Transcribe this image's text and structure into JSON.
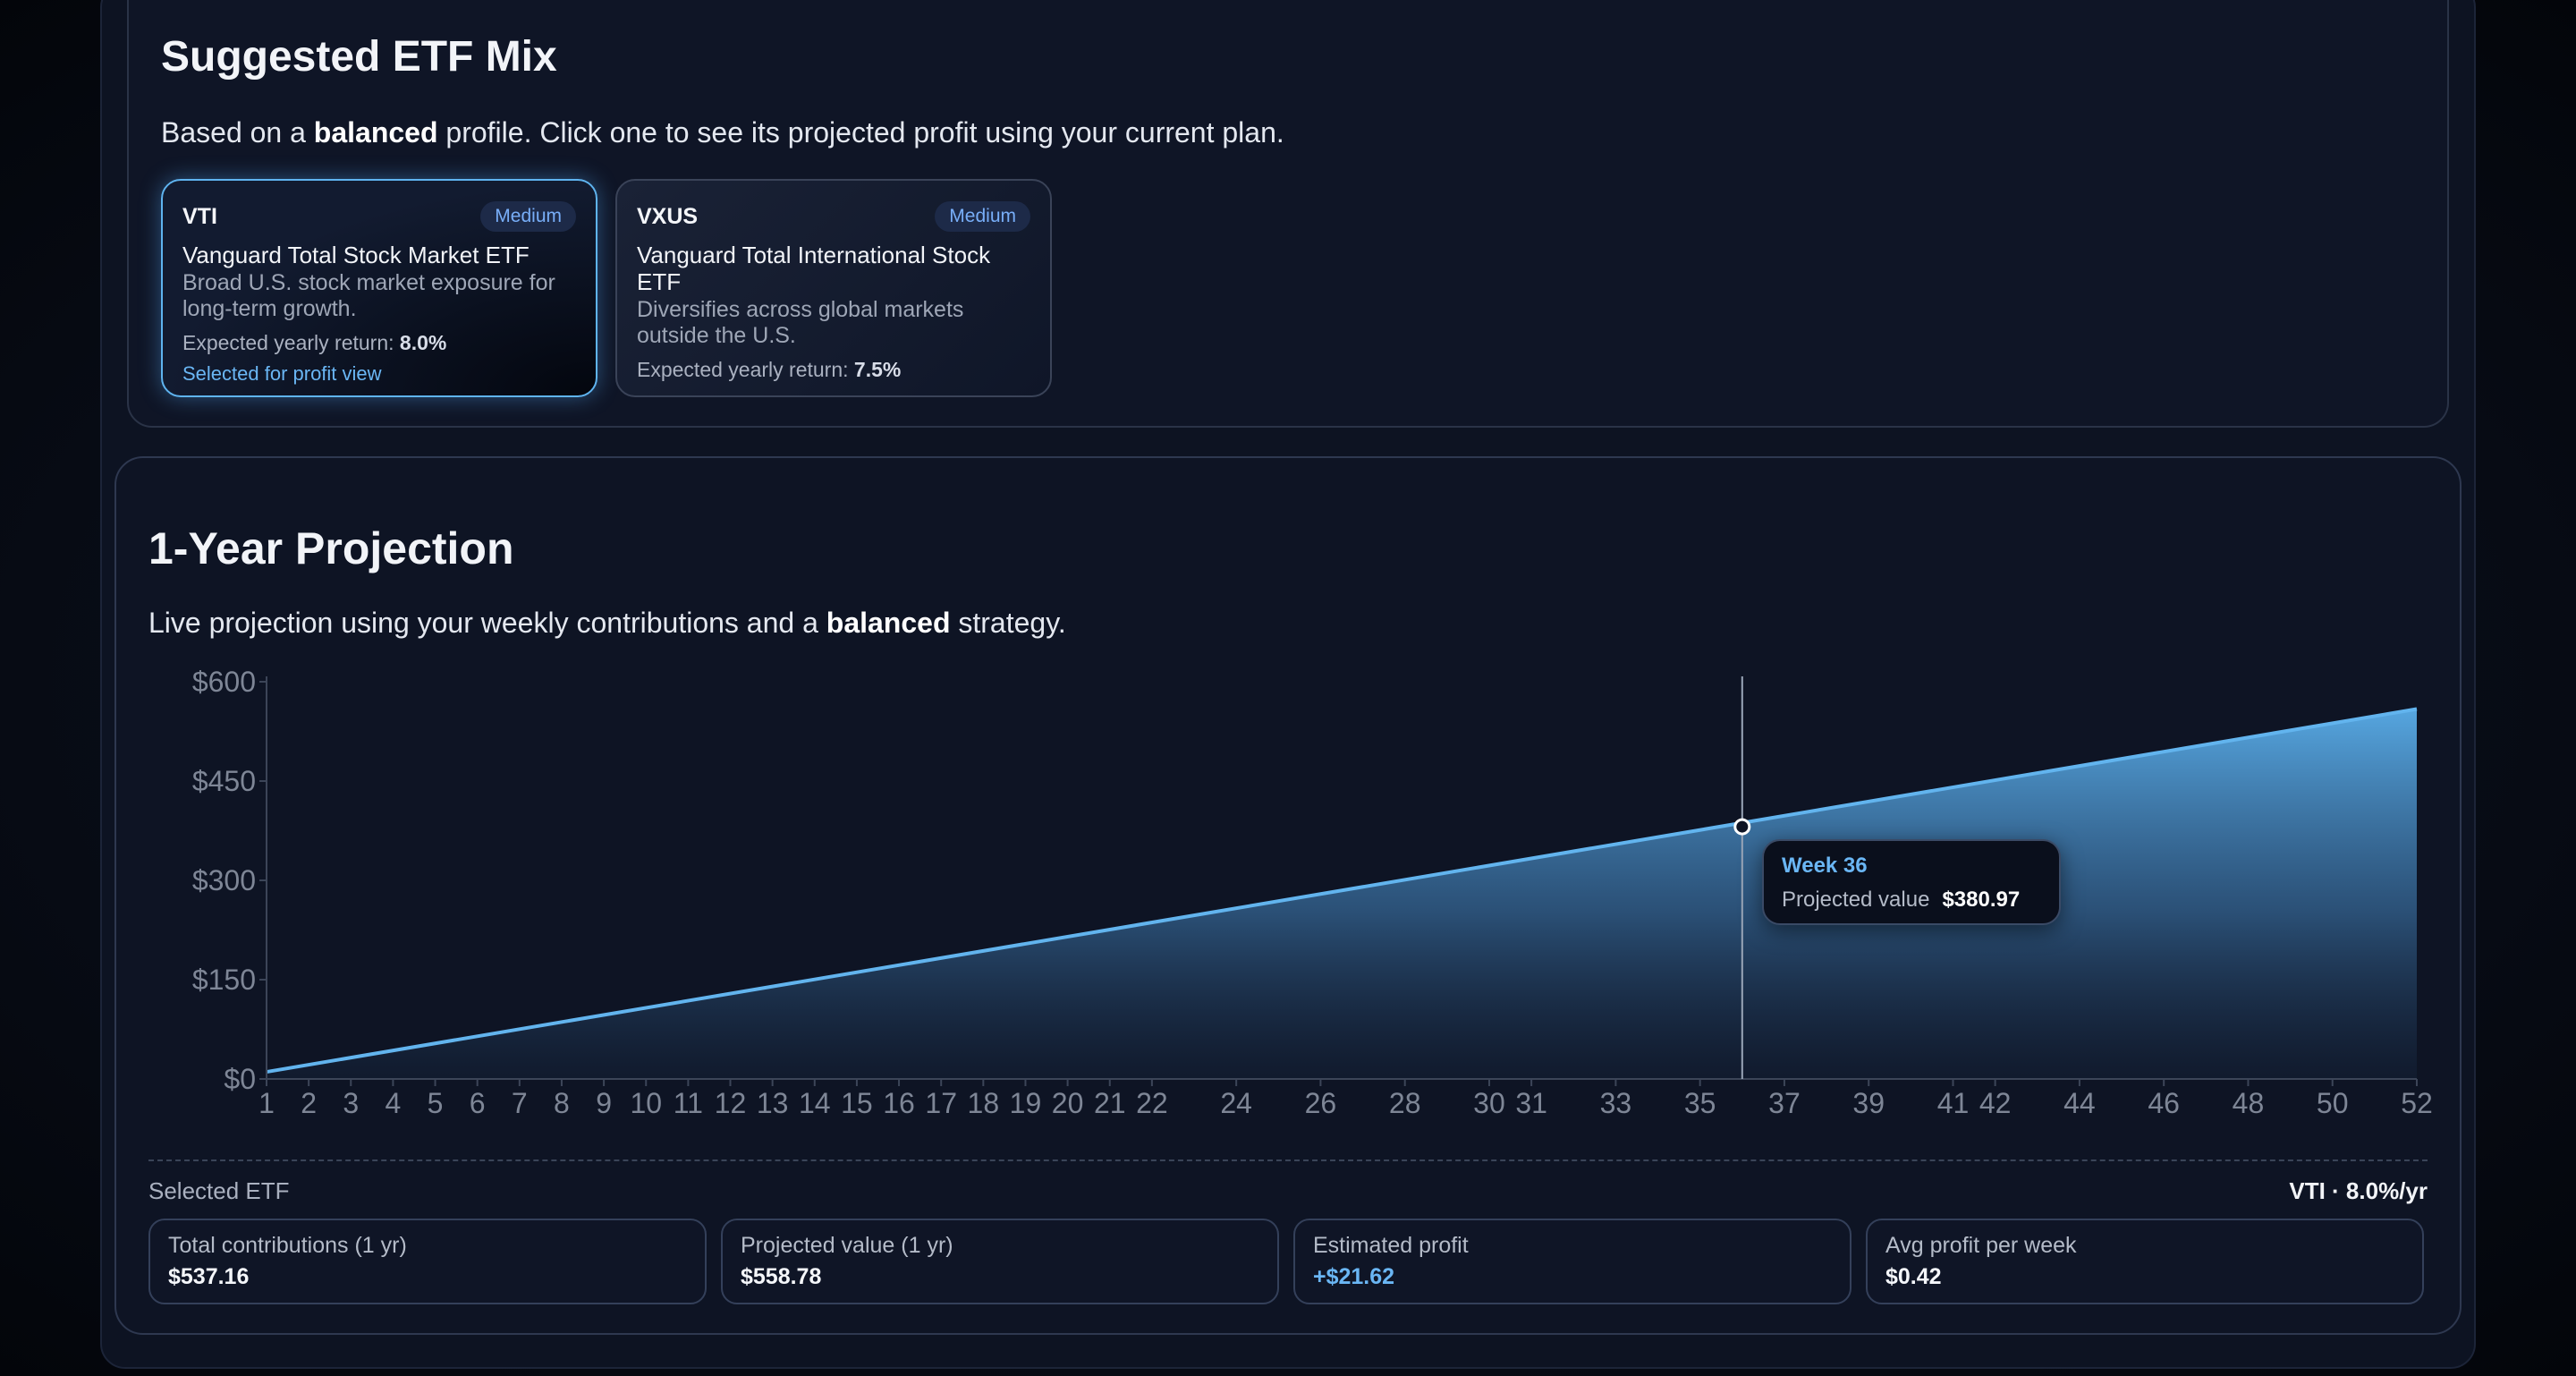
{
  "etf_section": {
    "title": "Suggested ETF Mix",
    "desc_prefix": "Based on a ",
    "desc_bold": "balanced",
    "desc_suffix": " profile. Click one to see its projected profit using your current plan.",
    "cards": [
      {
        "ticker": "VTI",
        "risk": "Medium",
        "name": "Vanguard Total Stock Market ETF",
        "note": "Broad U.S. stock market exposure for long-term growth.",
        "return_label": "Expected yearly return: ",
        "return_value": "8.0%",
        "selected_text": "Selected for profit view"
      },
      {
        "ticker": "VXUS",
        "risk": "Medium",
        "name": "Vanguard Total International Stock ETF",
        "note": "Diversifies across global markets outside the U.S.",
        "return_label": "Expected yearly return: ",
        "return_value": "7.5%"
      }
    ]
  },
  "projection": {
    "title": "1-Year Projection",
    "desc_prefix": "Live projection using your weekly contributions and a ",
    "desc_bold": "balanced",
    "desc_suffix": " strategy.",
    "tooltip": {
      "week": "Week 36",
      "label": "Projected value",
      "value": "$380.97"
    },
    "selected_label": "Selected ETF",
    "selected_value": "VTI · 8.0%/yr",
    "stats": [
      {
        "label": "Total contributions (1 yr)",
        "value": "$537.16"
      },
      {
        "label": "Projected value (1 yr)",
        "value": "$558.78"
      },
      {
        "label": "Estimated profit",
        "value": "+$21.62"
      },
      {
        "label": "Avg profit per week",
        "value": "$0.42"
      }
    ]
  },
  "colors": {
    "accent": "#6ab6f4",
    "line": "#5aaeea",
    "background": "#0e1424"
  },
  "chart_data": {
    "type": "area",
    "x": [
      1,
      52
    ],
    "y": [
      10.74,
      558.78
    ],
    "highlight": {
      "x": 36,
      "y": 380.97
    },
    "ylim": [
      0,
      600
    ],
    "yticks": [
      "$0",
      "$150",
      "$300",
      "$450",
      "$600"
    ],
    "ytick_values": [
      0,
      150,
      300,
      450,
      600
    ],
    "xticks": [
      1,
      2,
      3,
      4,
      5,
      6,
      7,
      8,
      9,
      10,
      11,
      12,
      13,
      14,
      15,
      16,
      17,
      18,
      19,
      20,
      21,
      22,
      24,
      26,
      28,
      30,
      31,
      33,
      35,
      37,
      39,
      41,
      42,
      44,
      46,
      48,
      50,
      52
    ],
    "grid": false
  }
}
